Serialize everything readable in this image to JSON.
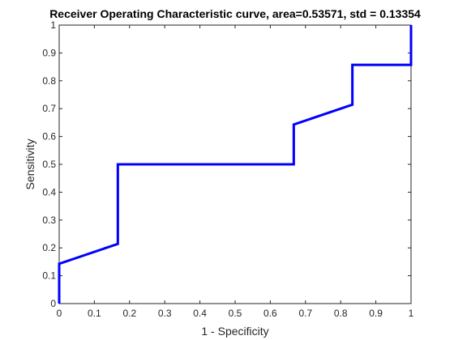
{
  "chart_data": {
    "type": "line",
    "title": "Receiver Operating Characteristic curve, area=0.53571, std = 0.13354",
    "xlabel": "1 - Specificity",
    "ylabel": "Sensitivity",
    "xlim": [
      0,
      1
    ],
    "ylim": [
      0,
      1
    ],
    "xticks": [
      "0",
      "0.1",
      "0.2",
      "0.3",
      "0.4",
      "0.5",
      "0.6",
      "0.7",
      "0.8",
      "0.9",
      "1"
    ],
    "yticks": [
      "0",
      "0.1",
      "0.2",
      "0.3",
      "0.4",
      "0.5",
      "0.6",
      "0.7",
      "0.8",
      "0.9",
      "1"
    ],
    "grid": false,
    "line_color": "#0000ff",
    "series": [
      {
        "x": [
          0,
          0,
          0.1667,
          0.1667,
          0.6667,
          0.6667,
          0.8333,
          0.8333,
          1,
          1
        ],
        "y": [
          0,
          0.1429,
          0.2143,
          0.5,
          0.5,
          0.6429,
          0.7143,
          0.8571,
          0.8571,
          1
        ]
      }
    ]
  }
}
